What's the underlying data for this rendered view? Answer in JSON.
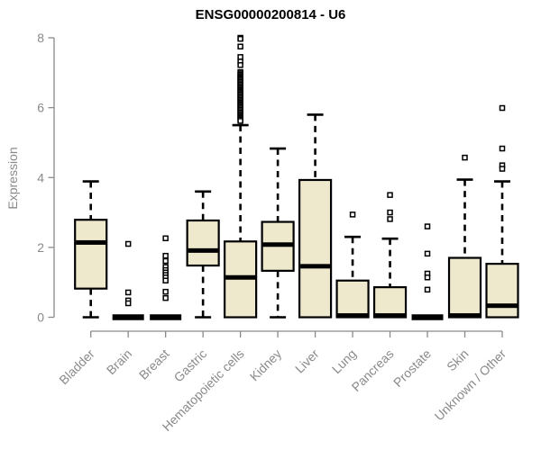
{
  "chart_data": {
    "type": "boxplot",
    "title": "ENSG00000200814 - U6",
    "xlabel": "",
    "ylabel": "Expression",
    "ylim": [
      0,
      8
    ],
    "yticks": [
      0,
      2,
      4,
      6,
      8
    ],
    "grid": false,
    "legend": null,
    "categories": [
      "Bladder",
      "Brain",
      "Breast",
      "Gastric",
      "Hematopoietic cells",
      "Kidney",
      "Liver",
      "Lung",
      "Pancreas",
      "Prostate",
      "Skin",
      "Unknown / Other"
    ],
    "series": [
      {
        "name": "Bladder",
        "low": 0,
        "q1": 0.82,
        "median": 2.14,
        "q3": 2.79,
        "high": 3.89,
        "outliers": []
      },
      {
        "name": "Brain",
        "low": 0,
        "q1": 0,
        "median": 0,
        "q3": 0,
        "high": 0,
        "outliers": [
          2.1,
          0.71,
          0.48,
          0.4
        ]
      },
      {
        "name": "Breast",
        "low": 0,
        "q1": 0,
        "median": 0,
        "q3": 0,
        "high": 0,
        "outliers": [
          2.26,
          1.76,
          1.61,
          1.44,
          1.35,
          1.28,
          1.21,
          1.14,
          1.05,
          0.73,
          0.55
        ]
      },
      {
        "name": "Gastric",
        "low": 0,
        "q1": 1.48,
        "median": 1.91,
        "q3": 2.77,
        "high": 3.6,
        "outliers": []
      },
      {
        "name": "Hematopoietic cells",
        "low": 0,
        "q1": 0,
        "median": 1.14,
        "q3": 2.17,
        "high": 5.5,
        "outliers": [
          8.0,
          7.97,
          7.75,
          7.45,
          7.32,
          7.22,
          7.02,
          6.98,
          6.94,
          6.9,
          6.86,
          6.82,
          6.78,
          6.74,
          6.7,
          6.66,
          6.62,
          6.58,
          6.54,
          6.5,
          6.46,
          6.42,
          6.38,
          6.34,
          6.3,
          6.26,
          6.22,
          6.18,
          6.14,
          6.1,
          6.06,
          6.02,
          5.98,
          5.94,
          5.9,
          5.86,
          5.82,
          5.78,
          5.74,
          5.7,
          5.66,
          5.62
        ]
      },
      {
        "name": "Kidney",
        "low": 0,
        "q1": 1.33,
        "median": 2.08,
        "q3": 2.73,
        "high": 4.83,
        "outliers": []
      },
      {
        "name": "Liver",
        "low": 0,
        "q1": 0,
        "median": 1.46,
        "q3": 3.93,
        "high": 5.8,
        "outliers": []
      },
      {
        "name": "Lung",
        "low": 0,
        "q1": 0,
        "median": 0.05,
        "q3": 1.05,
        "high": 2.3,
        "outliers": [
          2.94
        ]
      },
      {
        "name": "Pancreas",
        "low": 0,
        "q1": 0,
        "median": 0.05,
        "q3": 0.86,
        "high": 2.25,
        "outliers": [
          3.5,
          3.0,
          2.81
        ]
      },
      {
        "name": "Prostate",
        "low": 0,
        "q1": 0,
        "median": 0,
        "q3": 0,
        "high": 0,
        "outliers": [
          2.6,
          1.82,
          1.25,
          1.14,
          0.79
        ]
      },
      {
        "name": "Skin",
        "low": 0,
        "q1": 0,
        "median": 0.05,
        "q3": 1.7,
        "high": 3.94,
        "outliers": [
          4.57
        ]
      },
      {
        "name": "Unknown / Other",
        "low": 0,
        "q1": 0,
        "median": 0.33,
        "q3": 1.53,
        "high": 3.89,
        "outliers": [
          5.99,
          4.83,
          4.35,
          4.25
        ]
      }
    ],
    "style": {
      "box_fill": "#EEE8CD",
      "box_stroke": "#000000",
      "median_color": "#000000",
      "whisker_color": "#000000",
      "outlier_fill": "#ffffff",
      "axis_color": "#8a8a8a",
      "text_color": "#8a8a8a",
      "title_color": "#000000",
      "background": "#ffffff"
    }
  }
}
